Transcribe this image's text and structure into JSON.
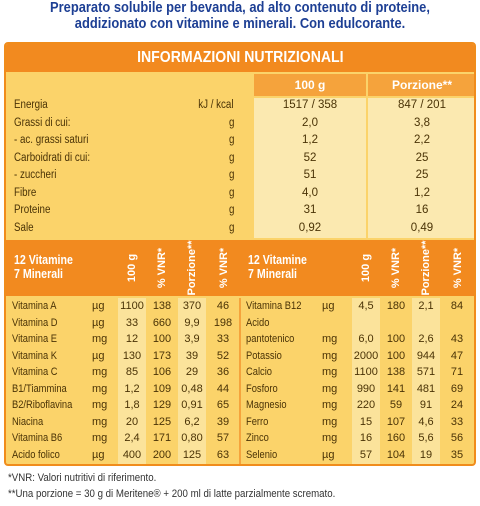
{
  "intro": {
    "line1": "Preparato solubile per bevanda, ad alto contenuto di proteine,",
    "line2": "addizionato con vitamine e minerali. Con edulcorante."
  },
  "title": "INFORMAZIONI NUTRIZIONALI",
  "columns": {
    "per100": "100 g",
    "portion": "Porzione**"
  },
  "nutrients": [
    {
      "label": "Energia",
      "unit": "kJ / kcal",
      "v100": "1517 / 358",
      "portion": "847 / 201"
    },
    {
      "label": "Grassi di cui:",
      "unit": "g",
      "v100": "2,0",
      "portion": "3,8"
    },
    {
      "label": "- ac. grassi saturi",
      "unit": "g",
      "v100": "1,2",
      "portion": "2,2"
    },
    {
      "label": "Carboidrati di cui:",
      "unit": "g",
      "v100": "52",
      "portion": "25"
    },
    {
      "label": "- zuccheri",
      "unit": "g",
      "v100": "51",
      "portion": "25"
    },
    {
      "label": "Fibre",
      "unit": "g",
      "v100": "4,0",
      "portion": "1,2"
    },
    {
      "label": "Proteine",
      "unit": "g",
      "v100": "31",
      "portion": "16"
    },
    {
      "label": "Sale",
      "unit": "g",
      "v100": "0,92",
      "portion": "0,49"
    }
  ],
  "vit_header": {
    "left_line1": "12 Vitamine",
    "left_line2": "7 Minerali",
    "right_line1": "12 Vitamine",
    "right_line2": "7 Minerali",
    "col_100g": "100 g",
    "col_vnr": "% VNR*",
    "col_portion": "Porzione**",
    "col_vnr2": "% VNR*"
  },
  "vitamins_left": [
    {
      "name": "Vitamina A",
      "unit": "µg",
      "g100": "1100",
      "vnr": "138",
      "portion": "370",
      "vnr2": "46"
    },
    {
      "name": "Vitamina D",
      "unit": "µg",
      "g100": "33",
      "vnr": "660",
      "portion": "9,9",
      "vnr2": "198"
    },
    {
      "name": "Vitamina E",
      "unit": "mg",
      "g100": "12",
      "vnr": "100",
      "portion": "3,9",
      "vnr2": "33"
    },
    {
      "name": "Vitamina K",
      "unit": "µg",
      "g100": "130",
      "vnr": "173",
      "portion": "39",
      "vnr2": "52"
    },
    {
      "name": "Vitamina C",
      "unit": "mg",
      "g100": "85",
      "vnr": "106",
      "portion": "29",
      "vnr2": "36"
    },
    {
      "name": "B1/Tiammina",
      "unit": "mg",
      "g100": "1,2",
      "vnr": "109",
      "portion": "0,48",
      "vnr2": "44"
    },
    {
      "name": "B2/Riboflavina",
      "unit": "mg",
      "g100": "1,8",
      "vnr": "129",
      "portion": "0,91",
      "vnr2": "65"
    },
    {
      "name": "Niacina",
      "unit": "mg",
      "g100": "20",
      "vnr": "125",
      "portion": "6,2",
      "vnr2": "39"
    },
    {
      "name": "Vitamina B6",
      "unit": "mg",
      "g100": "2,4",
      "vnr": "171",
      "portion": "0,80",
      "vnr2": "57"
    },
    {
      "name": "Acido folico",
      "unit": "µg",
      "g100": "400",
      "vnr": "200",
      "portion": "125",
      "vnr2": "63"
    }
  ],
  "vitamins_right": [
    {
      "name": "Vitamina B12",
      "unit": "µg",
      "g100": "4,5",
      "vnr": "180",
      "portion": "2,1",
      "vnr2": "84"
    },
    {
      "name": "Acido",
      "unit": "",
      "g100": "",
      "vnr": "",
      "portion": "",
      "vnr2": ""
    },
    {
      "name": "pantotenico",
      "unit": "mg",
      "g100": "6,0",
      "vnr": "100",
      "portion": "2,6",
      "vnr2": "43"
    },
    {
      "name": "Potassio",
      "unit": "mg",
      "g100": "2000",
      "vnr": "100",
      "portion": "944",
      "vnr2": "47"
    },
    {
      "name": "Calcio",
      "unit": "mg",
      "g100": "1100",
      "vnr": "138",
      "portion": "571",
      "vnr2": "71"
    },
    {
      "name": "Fosforo",
      "unit": "mg",
      "g100": "990",
      "vnr": "141",
      "portion": "481",
      "vnr2": "69"
    },
    {
      "name": "Magnesio",
      "unit": "mg",
      "g100": "220",
      "vnr": "59",
      "portion": "91",
      "vnr2": "24"
    },
    {
      "name": "Ferro",
      "unit": "mg",
      "g100": "15",
      "vnr": "107",
      "portion": "4,6",
      "vnr2": "33"
    },
    {
      "name": "Zinco",
      "unit": "mg",
      "g100": "16",
      "vnr": "160",
      "portion": "5,6",
      "vnr2": "56"
    },
    {
      "name": "Selenio",
      "unit": "µg",
      "g100": "57",
      "vnr": "104",
      "portion": "19",
      "vnr2": "35"
    }
  ],
  "footer": {
    "line1": "*VNR: Valori nutritivi di riferimento.",
    "line2": "**Una porzione = 30 g di Meritene® + 200 ml di latte parzialmente scremato."
  }
}
